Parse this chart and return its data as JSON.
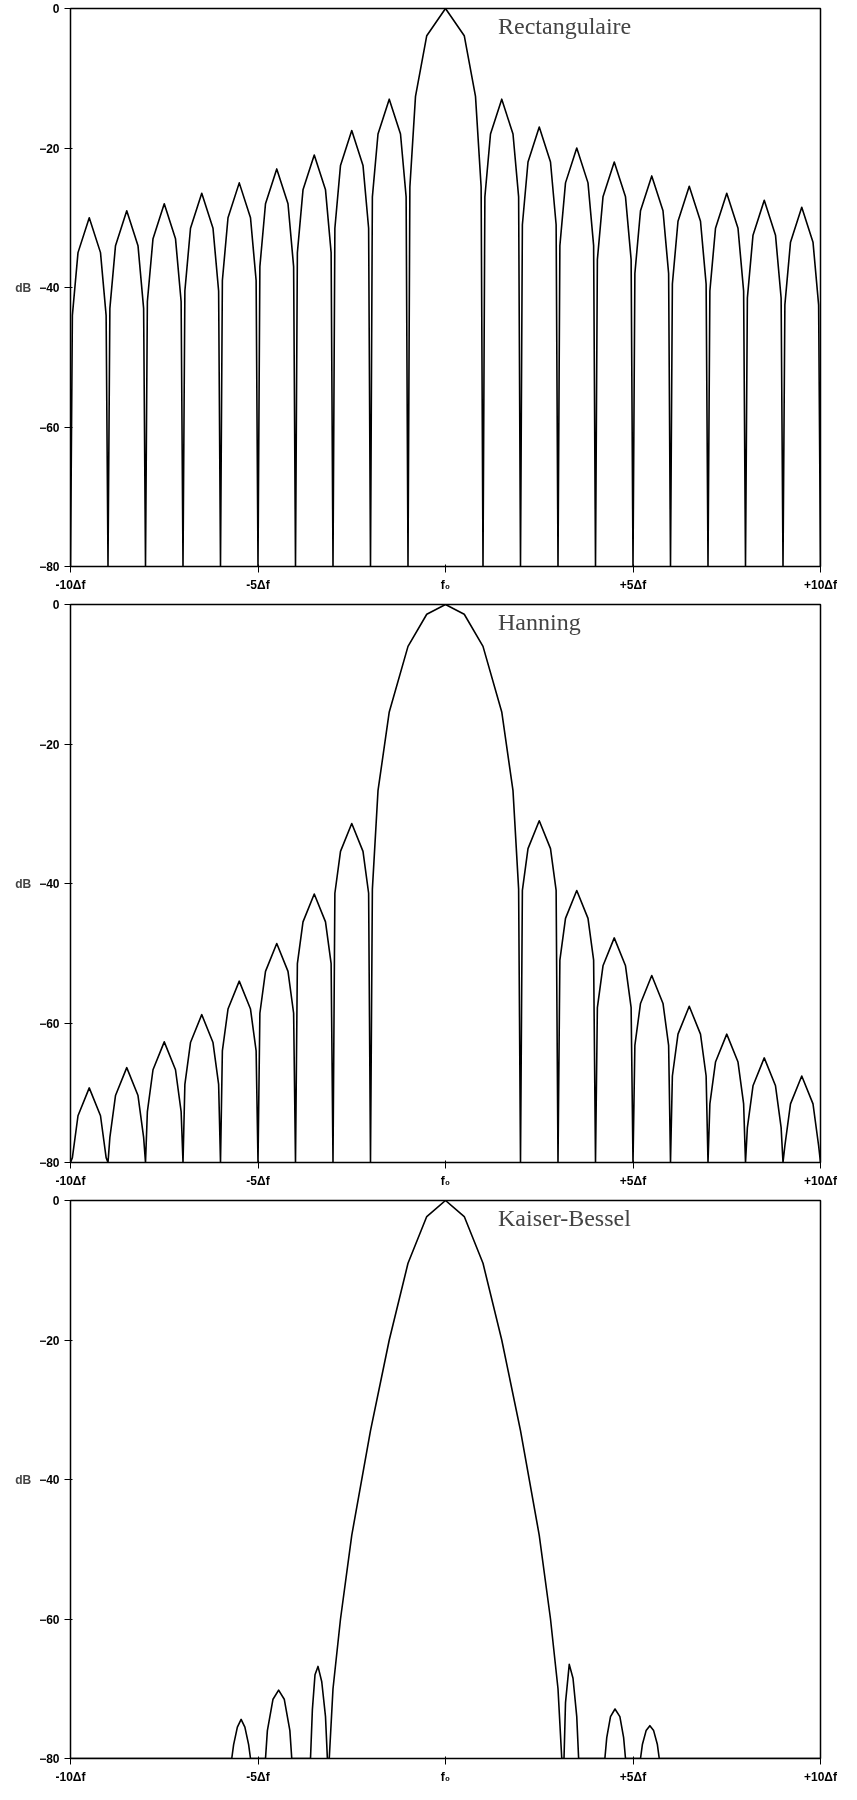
{
  "chart_data": [
    {
      "type": "line",
      "title": "Rectangulaire",
      "ylabel": "dB",
      "xlim": [
        -10,
        10
      ],
      "ylim": [
        -80,
        0
      ],
      "xticks": [
        {
          "value": -10,
          "label": "-10Δf"
        },
        {
          "value": -5,
          "label": "-5Δf"
        },
        {
          "value": 0,
          "label": "f₀"
        },
        {
          "value": 5,
          "label": "+5Δf"
        },
        {
          "value": 10,
          "label": "+10Δf"
        }
      ],
      "yticks": [
        0,
        -20,
        -40,
        -60,
        -80
      ],
      "grid": false,
      "series": [
        {
          "color": "#000000",
          "x": [
            -10,
            -9.95,
            -9.8,
            -9.5,
            -9.2,
            -9.05,
            -9,
            -8.95,
            -8.8,
            -8.5,
            -8.2,
            -8.05,
            -8,
            -7.95,
            -7.8,
            -7.5,
            -7.2,
            -7.05,
            -7,
            -6.95,
            -6.8,
            -6.5,
            -6.2,
            -6.05,
            -6,
            -5.95,
            -5.8,
            -5.5,
            -5.2,
            -5.05,
            -5,
            -4.95,
            -4.8,
            -4.5,
            -4.2,
            -4.05,
            -4,
            -3.95,
            -3.8,
            -3.5,
            -3.2,
            -3.05,
            -3,
            -2.95,
            -2.8,
            -2.5,
            -2.2,
            -2.05,
            -2,
            -1.95,
            -1.8,
            -1.5,
            -1.2,
            -1.05,
            -1,
            -0.95,
            -0.8,
            -0.5,
            0,
            0.5,
            0.8,
            0.95,
            1,
            1.05,
            1.2,
            1.5,
            1.8,
            1.95,
            2,
            2.05,
            2.2,
            2.5,
            2.8,
            2.95,
            3,
            3.05,
            3.2,
            3.5,
            3.8,
            3.95,
            4,
            4.05,
            4.2,
            4.5,
            4.8,
            4.95,
            5,
            5.05,
            5.2,
            5.5,
            5.8,
            5.95,
            6,
            6.05,
            6.2,
            6.5,
            6.8,
            6.95,
            7,
            7.05,
            7.2,
            7.5,
            7.8,
            7.95,
            8,
            8.05,
            8.2,
            8.5,
            8.8,
            8.95,
            9,
            9.05,
            9.2,
            9.5,
            9.8,
            9.95,
            10
          ],
          "values": [
            -80,
            -44,
            -35,
            -30,
            -35,
            -44,
            -80,
            -43,
            -34,
            -29,
            -34,
            -43,
            -80,
            -42,
            -33,
            -28,
            -33,
            -42,
            -80,
            -40.5,
            -31.5,
            -26.5,
            -31.5,
            -40.5,
            -80,
            -39,
            -30,
            -25,
            -30,
            -39,
            -80,
            -37,
            -28,
            -23,
            -28,
            -37,
            -80,
            -35,
            -26,
            -21,
            -26,
            -35,
            -80,
            -31.5,
            -22.5,
            -17.5,
            -22.5,
            -31.5,
            -80,
            -27,
            -18,
            -13,
            -18,
            -27,
            -80,
            -25.6,
            -12.6,
            -3.9,
            0,
            -3.9,
            -12.6,
            -25.6,
            -80,
            -27,
            -18,
            -13,
            -18,
            -27,
            -80,
            -31,
            -22,
            -17,
            -22,
            -31,
            -80,
            -34,
            -25,
            -20,
            -25,
            -34,
            -80,
            -36,
            -27,
            -22,
            -27,
            -36,
            -80,
            -38,
            -29,
            -24,
            -29,
            -38,
            -80,
            -39.5,
            -30.5,
            -25.5,
            -30.5,
            -39.5,
            -80,
            -40.5,
            -31.5,
            -26.5,
            -31.5,
            -40.5,
            -80,
            -41.5,
            -32.5,
            -27.5,
            -32.5,
            -41.5,
            -80,
            -42.5,
            -33.5,
            -28.5,
            -33.5,
            -42.5,
            -80
          ]
        }
      ]
    },
    {
      "type": "line",
      "title": "Hanning",
      "ylabel": "dB",
      "xlim": [
        -10,
        10
      ],
      "ylim": [
        -80,
        0
      ],
      "xticks": [
        {
          "value": -10,
          "label": "-10Δf"
        },
        {
          "value": -5,
          "label": "-5Δf"
        },
        {
          "value": 0,
          "label": "f₀"
        },
        {
          "value": 5,
          "label": "+5Δf"
        },
        {
          "value": 10,
          "label": "+10Δf"
        }
      ],
      "yticks": [
        0,
        -20,
        -40,
        -60,
        -80
      ],
      "grid": false,
      "series": [
        {
          "color": "#000000",
          "x": [
            -10,
            -9.95,
            -9.8,
            -9.5,
            -9.2,
            -9.05,
            -9,
            -8.95,
            -8.8,
            -8.5,
            -8.2,
            -8.05,
            -8,
            -7.95,
            -7.8,
            -7.5,
            -7.2,
            -7.05,
            -7,
            -6.95,
            -6.8,
            -6.5,
            -6.2,
            -6.05,
            -6,
            -5.95,
            -5.8,
            -5.5,
            -5.2,
            -5.05,
            -5,
            -4.95,
            -4.8,
            -4.5,
            -4.2,
            -4.05,
            -4,
            -3.95,
            -3.8,
            -3.5,
            -3.2,
            -3.05,
            -3,
            -2.95,
            -2.8,
            -2.5,
            -2.2,
            -2.05,
            -2,
            -1.95,
            -1.8,
            -1.5,
            -1,
            -0.5,
            0,
            0.5,
            1,
            1.5,
            1.8,
            1.95,
            2,
            2.05,
            2.2,
            2.5,
            2.8,
            2.95,
            3,
            3.05,
            3.2,
            3.5,
            3.8,
            3.95,
            4,
            4.05,
            4.2,
            4.5,
            4.8,
            4.95,
            5,
            5.05,
            5.2,
            5.5,
            5.8,
            5.95,
            6,
            6.05,
            6.2,
            6.5,
            6.8,
            6.95,
            7,
            7.05,
            7.2,
            7.5,
            7.8,
            7.95,
            8,
            8.05,
            8.2,
            8.5,
            8.8,
            8.95,
            9,
            9.05,
            9.2,
            9.5,
            9.8,
            9.95,
            10
          ],
          "values": [
            -80,
            -79.3,
            -73.3,
            -69.3,
            -73.3,
            -79.3,
            -80,
            -76.4,
            -70.4,
            -66.4,
            -70.4,
            -76.4,
            -80,
            -72.7,
            -66.7,
            -62.7,
            -66.7,
            -72.7,
            -80,
            -68.8,
            -62.8,
            -58.8,
            -62.8,
            -68.8,
            -80,
            -64,
            -58,
            -54,
            -58,
            -64,
            -80,
            -58.6,
            -52.6,
            -48.6,
            -52.6,
            -58.6,
            -80,
            -51.5,
            -45.5,
            -41.5,
            -45.5,
            -51.5,
            -80,
            -41.4,
            -35.4,
            -31.4,
            -35.4,
            -41.4,
            -80,
            -40.8,
            -26.7,
            -15.4,
            -6,
            -1.4,
            0,
            -1.4,
            -6,
            -15.4,
            -26.7,
            -40.8,
            -80,
            -41,
            -35,
            -31,
            -35,
            -41,
            -80,
            -51,
            -45,
            -41,
            -45,
            -51,
            -80,
            -57.8,
            -51.8,
            -47.8,
            -51.8,
            -57.8,
            -80,
            -63.2,
            -57.2,
            -53.2,
            -57.2,
            -63.2,
            -80,
            -67.6,
            -61.6,
            -57.6,
            -61.6,
            -67.6,
            -80,
            -71.6,
            -65.6,
            -61.6,
            -65.6,
            -71.6,
            -80,
            -75,
            -69,
            -65,
            -69,
            -75,
            -80,
            -77.6,
            -71.6,
            -67.6,
            -71.6,
            -77.6,
            -80
          ]
        }
      ]
    },
    {
      "type": "line",
      "title": "Kaiser-Bessel",
      "ylabel": "dB",
      "xlim": [
        -10,
        10
      ],
      "ylim": [
        -80,
        0
      ],
      "xticks": [
        {
          "value": -10,
          "label": "-10Δf"
        },
        {
          "value": -5,
          "label": "-5Δf"
        },
        {
          "value": 0,
          "label": "f₀"
        },
        {
          "value": 5,
          "label": "+5Δf"
        },
        {
          "value": 10,
          "label": "+10Δf"
        }
      ],
      "yticks": [
        0,
        -20,
        -40,
        -60,
        -80
      ],
      "grid": false,
      "series": [
        {
          "color": "#000000",
          "x": [
            -10,
            -5.7,
            -5.65,
            -5.55,
            -5.45,
            -5.35,
            -5.25,
            -5.2,
            -4.8,
            -4.75,
            -4.6,
            -4.45,
            -4.3,
            -4.15,
            -4.1,
            -3.6,
            -3.55,
            -3.48,
            -3.4,
            -3.3,
            -3.2,
            -3.15,
            -3.1,
            -3,
            -2.8,
            -2.5,
            -2,
            -1.5,
            -1,
            -0.5,
            0,
            0.5,
            1,
            1.5,
            2,
            2.5,
            2.8,
            3,
            3.1,
            3.16,
            3.2,
            3.3,
            3.4,
            3.5,
            3.55,
            4.25,
            4.3,
            4.4,
            4.52,
            4.65,
            4.75,
            4.8,
            5.2,
            5.25,
            5.35,
            5.45,
            5.55,
            5.65,
            5.7,
            10
          ],
          "values": [
            -80,
            -80,
            -78,
            -75.5,
            -74.4,
            -75.5,
            -78,
            -80,
            -80,
            -76,
            -71.5,
            -70.2,
            -71.5,
            -76,
            -80,
            -80,
            -73,
            -68,
            -66.8,
            -69,
            -74,
            -80,
            -80,
            -70,
            -60,
            -48,
            -33,
            -20,
            -9,
            -2.3,
            0,
            -2.3,
            -9,
            -20,
            -33,
            -48,
            -60,
            -70,
            -80,
            -80,
            -72,
            -66.5,
            -68.5,
            -74,
            -80,
            -80,
            -77,
            -74,
            -72.9,
            -74,
            -77,
            -80,
            -80,
            -78,
            -76,
            -75.3,
            -76,
            -78,
            -80,
            -80
          ]
        }
      ]
    }
  ]
}
